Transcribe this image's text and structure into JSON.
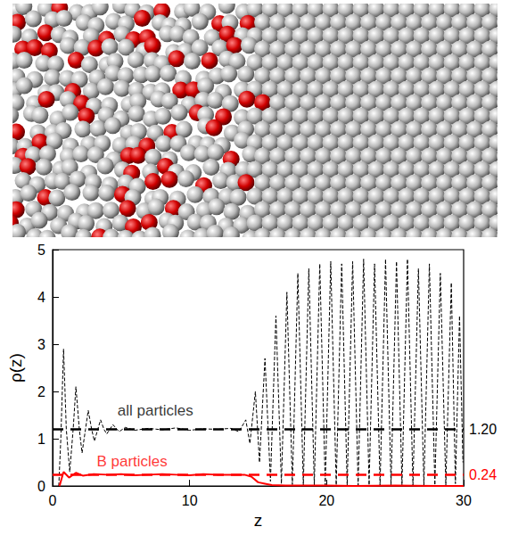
{
  "chart_data": {
    "type": "line",
    "xlabel": "z",
    "ylabel": "ρ(z)",
    "xlim": [
      0,
      30
    ],
    "xticks": [
      0,
      10,
      20,
      30
    ],
    "ylim": [
      0,
      5
    ],
    "yticks": [
      0,
      1,
      2,
      3,
      4,
      5
    ],
    "grid": false,
    "series": [
      {
        "name": "all particles",
        "color": "#000000",
        "line_style": "dashed",
        "label_at": [
          7.5,
          1.6
        ],
        "x": [
          0.45,
          0.6,
          0.8,
          1.0,
          1.25,
          1.5,
          1.7,
          1.95,
          2.15,
          2.4,
          2.6,
          2.85,
          3.05,
          3.3,
          3.5,
          3.75,
          3.95,
          4.4,
          4.85,
          5.3,
          6,
          7,
          8,
          9,
          10,
          11,
          12,
          13,
          13.6,
          14.1,
          14.4,
          14.8,
          15.1,
          15.5,
          15.9,
          16.3,
          16.7,
          17.1,
          17.5,
          17.9,
          18.3,
          18.7,
          19.1,
          19.5,
          19.9,
          20.3,
          20.7,
          21.1,
          21.5,
          21.9,
          22.3,
          22.7,
          23.1,
          23.5,
          23.9,
          24.3,
          24.7,
          25.1,
          25.5,
          25.9,
          26.3,
          26.7,
          27.1,
          27.5,
          27.9,
          28.3,
          28.7,
          29.1,
          29.4,
          29.7,
          29.95
        ],
        "values": [
          0.0,
          1.0,
          2.9,
          1.2,
          0.3,
          1.2,
          2.1,
          1.2,
          0.7,
          1.2,
          1.6,
          1.2,
          0.95,
          1.2,
          1.4,
          1.2,
          1.1,
          1.3,
          1.15,
          1.24,
          1.18,
          1.22,
          1.19,
          1.23,
          1.18,
          1.21,
          1.2,
          1.22,
          1.15,
          1.4,
          0.9,
          2.0,
          0.5,
          2.7,
          0.1,
          3.6,
          0.05,
          4.1,
          0.03,
          4.5,
          0.02,
          4.6,
          0.02,
          4.7,
          0.02,
          4.75,
          0.02,
          4.7,
          0.02,
          4.75,
          0.02,
          4.8,
          0.02,
          4.7,
          0.02,
          4.8,
          0.02,
          4.75,
          0.02,
          4.8,
          0.02,
          4.6,
          0.02,
          4.7,
          0.02,
          4.5,
          0.02,
          4.3,
          0.05,
          3.6,
          0.5
        ]
      },
      {
        "name": "B particles",
        "color": "#ff0000",
        "line_style": "solid",
        "label_at": [
          5.8,
          0.52
        ],
        "x": [
          0.5,
          0.8,
          1.2,
          1.7,
          2.2,
          3,
          4,
          5,
          6,
          7,
          8,
          9,
          10,
          11,
          12,
          13,
          14,
          14.5,
          15,
          15.5,
          16,
          17,
          18,
          20,
          22,
          25,
          28,
          30
        ],
        "values": [
          0.0,
          0.3,
          0.18,
          0.28,
          0.22,
          0.25,
          0.24,
          0.25,
          0.23,
          0.24,
          0.25,
          0.24,
          0.23,
          0.25,
          0.24,
          0.24,
          0.24,
          0.2,
          0.08,
          0.05,
          0.02,
          0.01,
          0.01,
          0.01,
          0.0,
          0.01,
          0.0,
          0.0
        ]
      }
    ],
    "reference_lines": [
      {
        "y": 1.2,
        "label": "1.20",
        "color": "#000000",
        "line_style": "dashed"
      },
      {
        "y": 0.24,
        "label": "0.24",
        "color": "#ff0000",
        "line_style": "dashed"
      }
    ]
  }
}
